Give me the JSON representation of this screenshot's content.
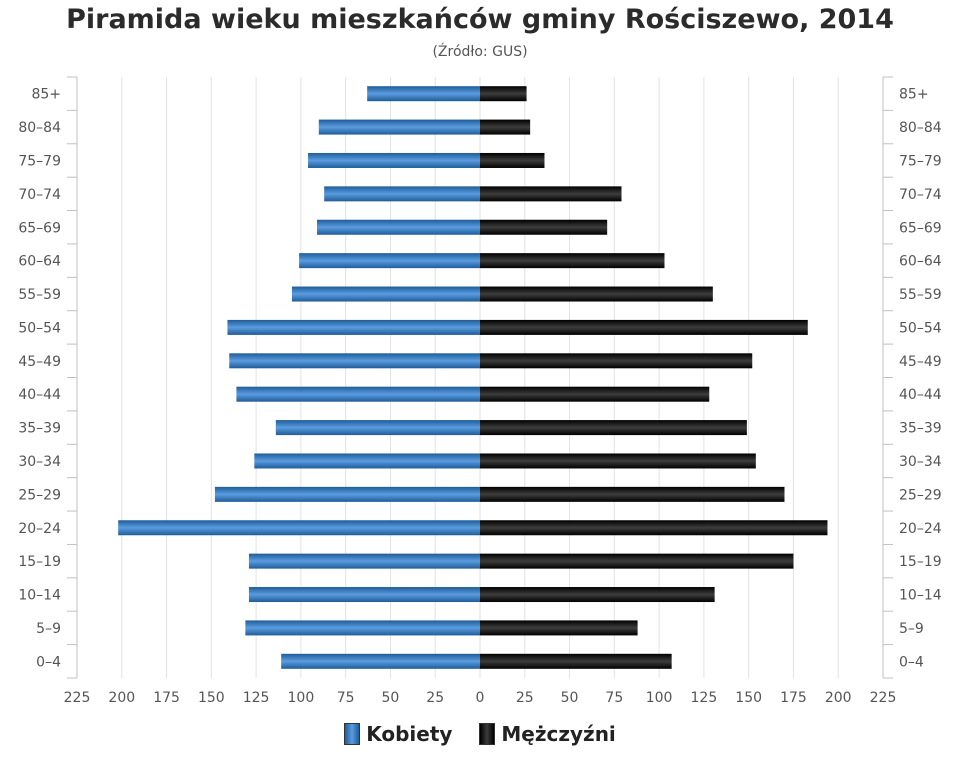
{
  "chart_data": {
    "type": "bar",
    "orientation": "horizontal-pyramid",
    "title": "Piramida wieku mieszkańców gminy Rościszewo, 2014",
    "subtitle": "(Źródło: GUS)",
    "categories": [
      "85+",
      "80–84",
      "75–79",
      "70–74",
      "65–69",
      "60–64",
      "55–59",
      "50–54",
      "45–49",
      "40–44",
      "35–39",
      "30–34",
      "25–29",
      "20–24",
      "15–19",
      "10–14",
      "5–9",
      "0–4"
    ],
    "series": [
      {
        "name": "Kobiety",
        "color": "#3a7cc2",
        "values": [
          63,
          90,
          96,
          87,
          91,
          101,
          105,
          141,
          140,
          136,
          114,
          126,
          148,
          202,
          129,
          129,
          131,
          111
        ]
      },
      {
        "name": "Mężczyźni",
        "color": "#1a1a1a",
        "values": [
          26,
          28,
          36,
          79,
          71,
          103,
          130,
          183,
          152,
          128,
          149,
          154,
          170,
          194,
          175,
          131,
          88,
          107
        ]
      }
    ],
    "xlim": [
      -225,
      225
    ],
    "xticks": [
      "225",
      "200",
      "175",
      "150",
      "125",
      "100",
      "75",
      "50",
      "25",
      "0",
      "25",
      "50",
      "75",
      "100",
      "125",
      "150",
      "175",
      "200",
      "225"
    ],
    "grid": true,
    "legend": "bottom-center"
  }
}
